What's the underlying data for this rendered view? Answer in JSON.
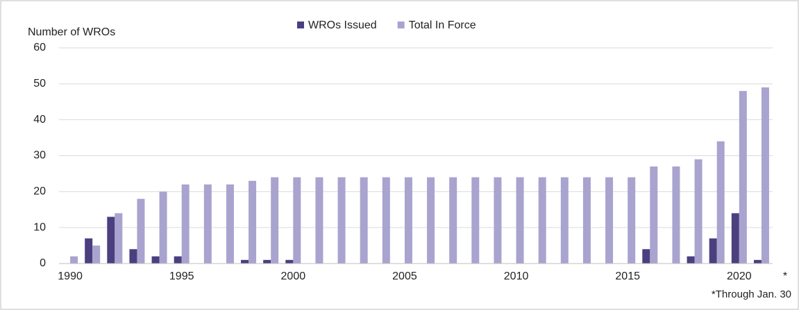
{
  "chart_data": {
    "type": "bar",
    "y_axis_label": "Number of WROs",
    "categories": [
      "1990",
      null,
      null,
      null,
      null,
      "1995",
      null,
      null,
      null,
      null,
      "2000",
      null,
      null,
      null,
      null,
      "2005",
      null,
      null,
      null,
      null,
      "2010",
      null,
      null,
      null,
      null,
      "2015",
      null,
      null,
      null,
      null,
      "2020",
      null
    ],
    "series": [
      {
        "name": "WROs Issued",
        "color": "#4b3f7f",
        "values": [
          0,
          7,
          13,
          4,
          2,
          2,
          0,
          0,
          1,
          1,
          1,
          0,
          0,
          0,
          0,
          0,
          0,
          0,
          0,
          0,
          0,
          0,
          0,
          0,
          0,
          0,
          4,
          0,
          2,
          7,
          14,
          1
        ]
      },
      {
        "name": "Total In Force",
        "color": "#a9a3cf",
        "values": [
          2,
          5,
          14,
          18,
          20,
          22,
          22,
          22,
          23,
          24,
          24,
          24,
          24,
          24,
          24,
          24,
          24,
          24,
          24,
          24,
          24,
          24,
          24,
          24,
          24,
          24,
          27,
          27,
          29,
          34,
          48,
          49
        ]
      }
    ],
    "ylim": [
      0,
      60
    ],
    "yticks": [
      0,
      10,
      20,
      30,
      40,
      50,
      60
    ],
    "grid": true,
    "legend": "top",
    "annotations": [
      "*",
      "*Through Jan. 30"
    ]
  }
}
